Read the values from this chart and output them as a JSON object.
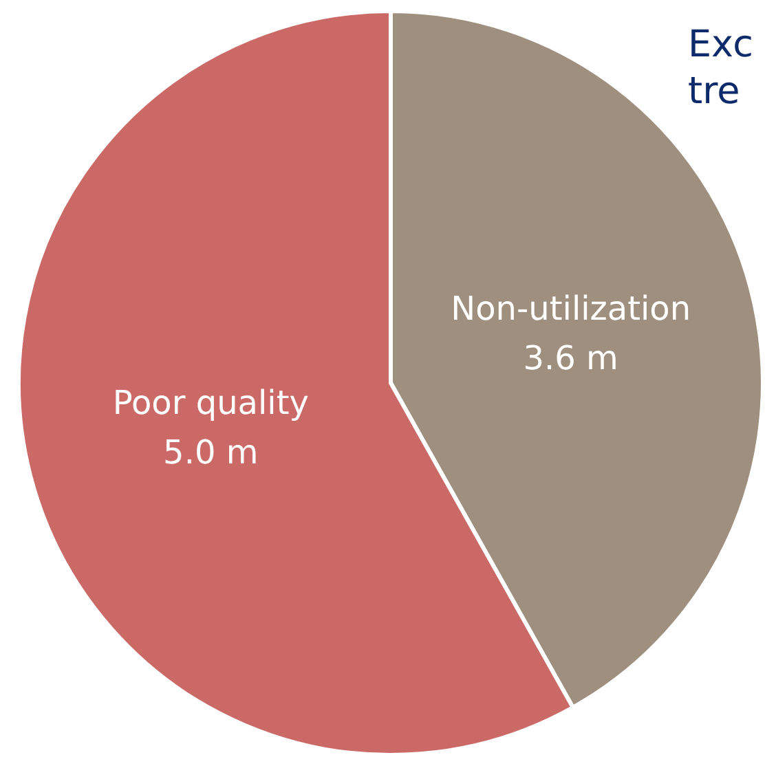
{
  "chart_data": {
    "type": "pie",
    "categories": [
      "Non-utilization",
      "Poor quality"
    ],
    "values": [
      3.6,
      5.0
    ],
    "value_labels": [
      "3.6 m",
      "5.0 m"
    ],
    "colors": [
      "#9f8f7e",
      "#cb6966"
    ],
    "annotations": [
      "Exc",
      "tre"
    ]
  }
}
